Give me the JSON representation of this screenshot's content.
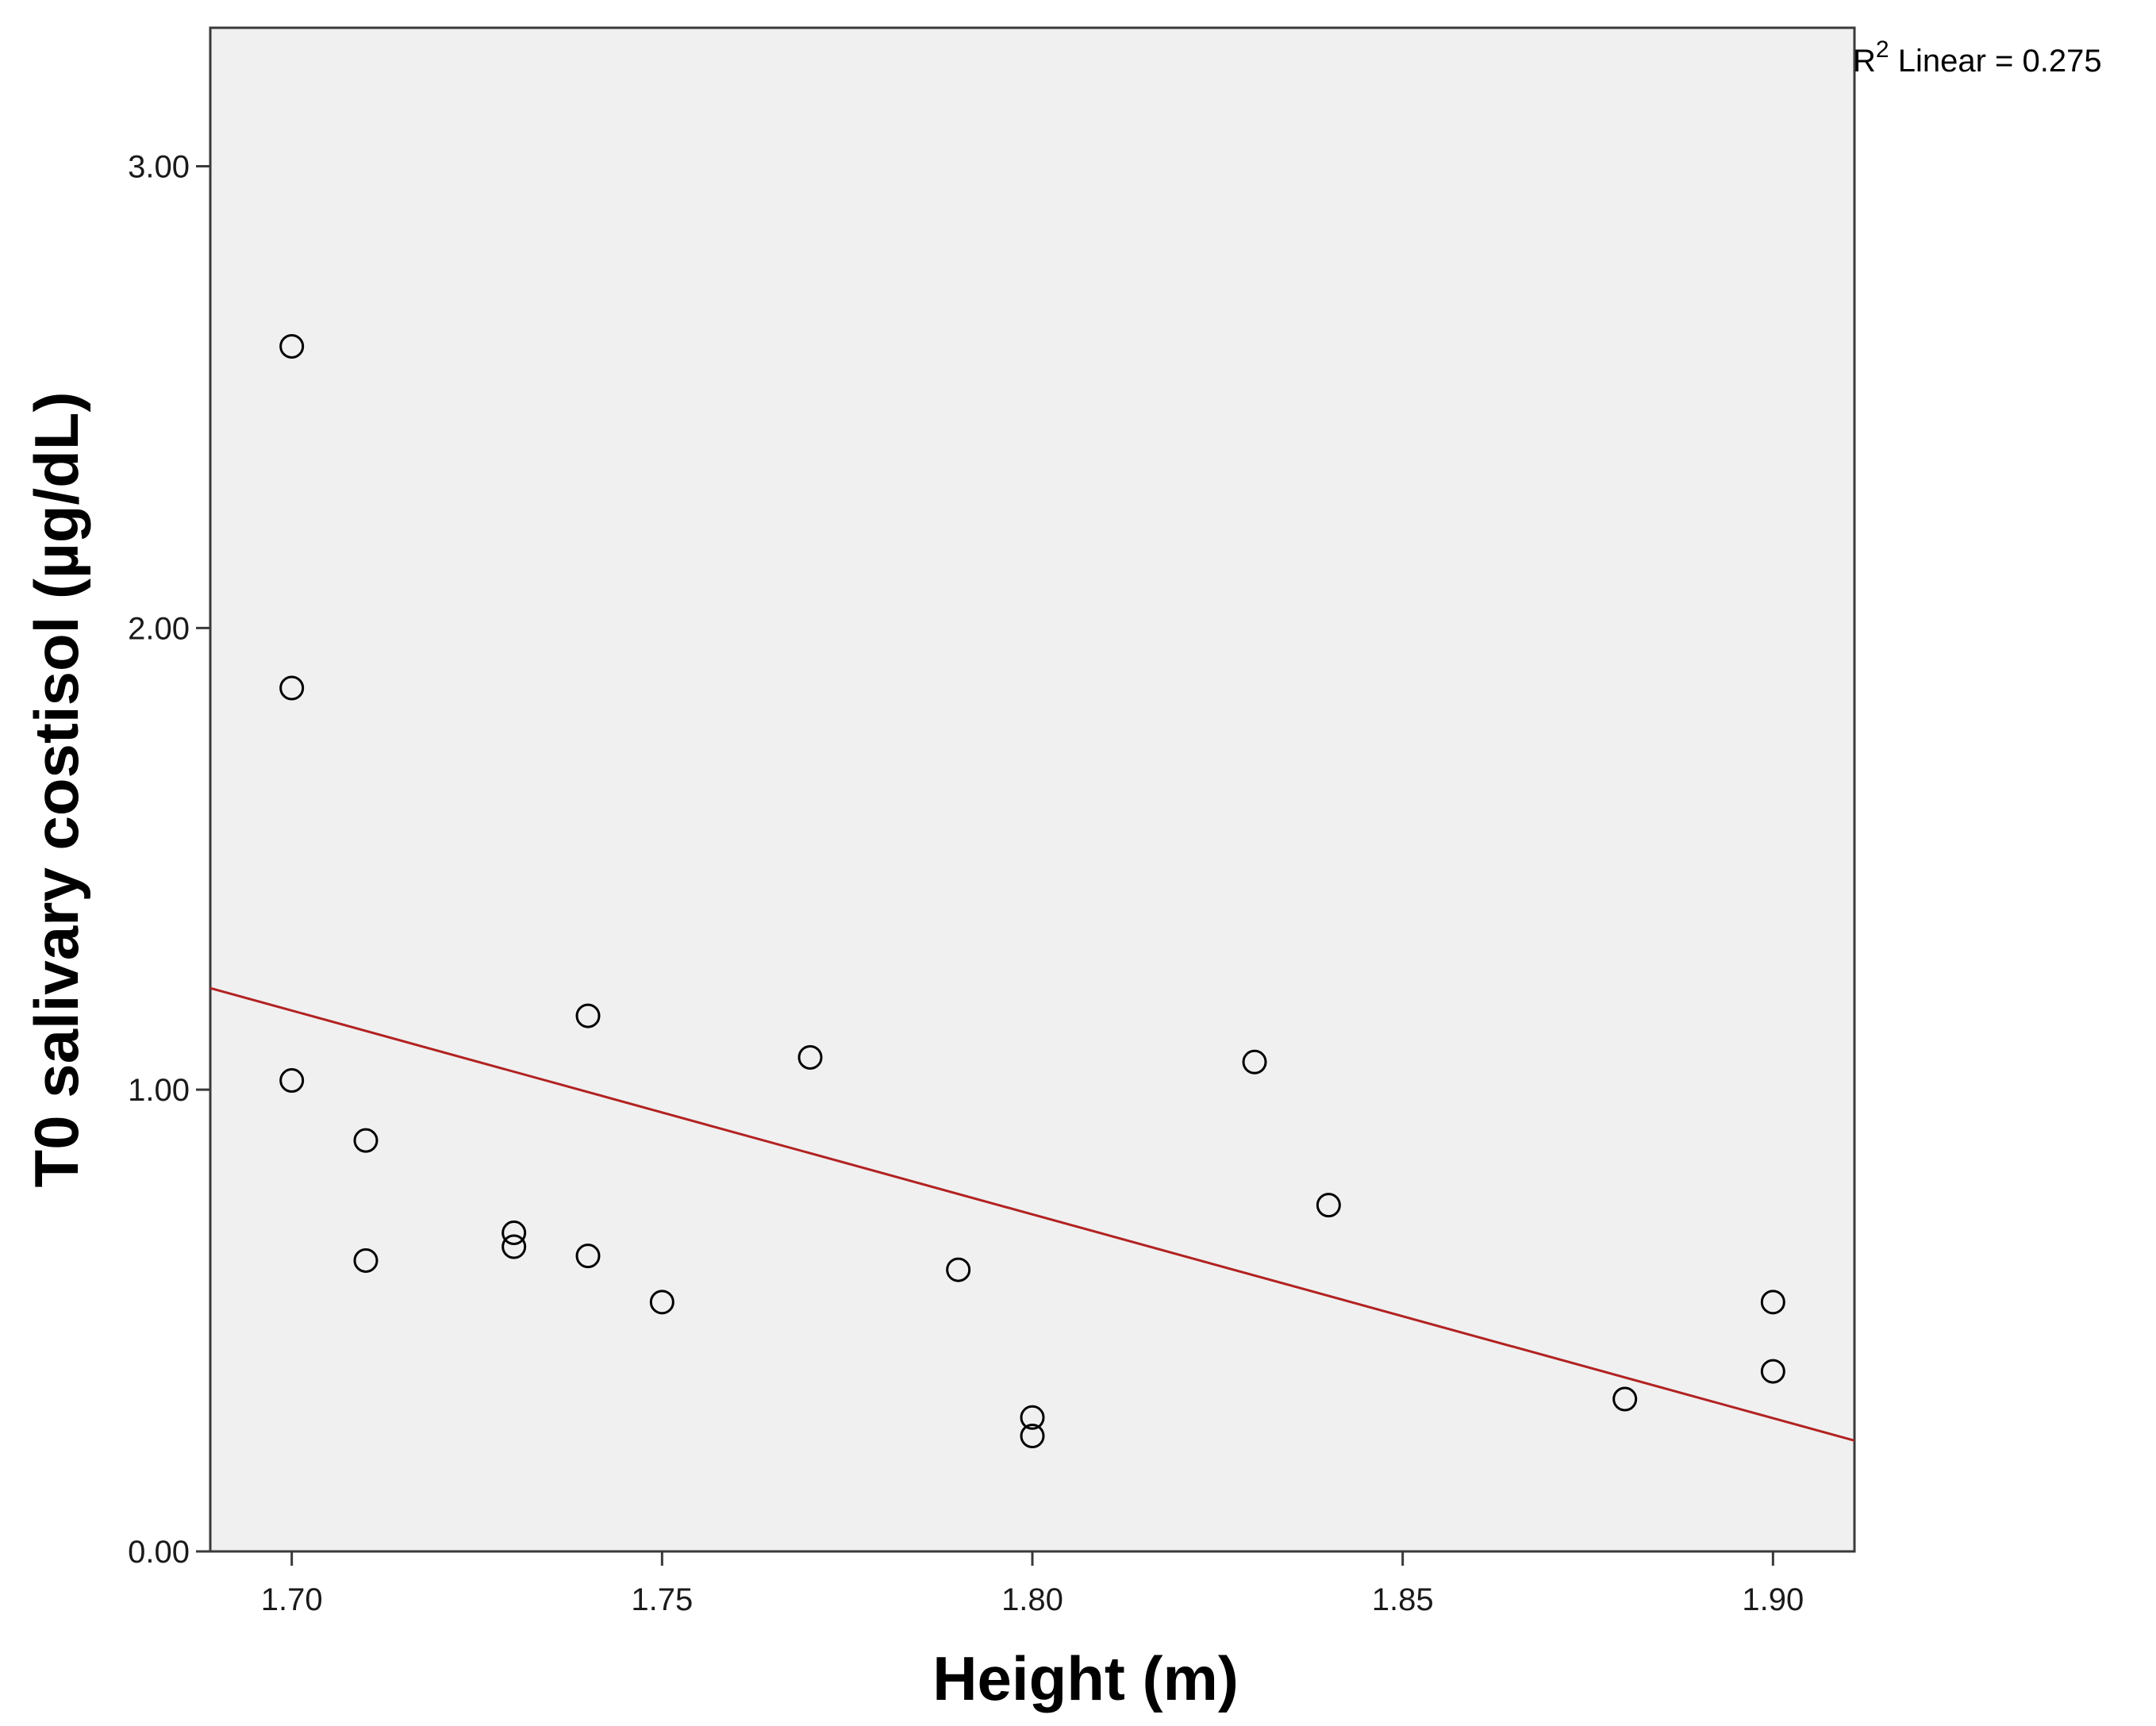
{
  "chart_data": {
    "type": "scatter",
    "title": "",
    "xlabel": "Height (m)",
    "ylabel": "T0 salivary costisol (µg/dL)",
    "xlim": [
      1.689,
      1.911
    ],
    "ylim": [
      0.0,
      3.3
    ],
    "x_ticks": [
      1.7,
      1.75,
      1.8,
      1.85,
      1.9
    ],
    "x_tick_labels": [
      "1.70",
      "1.75",
      "1.80",
      "1.85",
      "1.90"
    ],
    "y_ticks": [
      0.0,
      1.0,
      2.0,
      3.0
    ],
    "y_tick_labels": [
      "0.00",
      "1.00",
      "2.00",
      "3.00"
    ],
    "grid": false,
    "points": [
      {
        "x": 1.7,
        "y": 2.61
      },
      {
        "x": 1.7,
        "y": 1.87
      },
      {
        "x": 1.7,
        "y": 1.02
      },
      {
        "x": 1.71,
        "y": 0.89
      },
      {
        "x": 1.71,
        "y": 0.63
      },
      {
        "x": 1.73,
        "y": 0.69
      },
      {
        "x": 1.73,
        "y": 0.66
      },
      {
        "x": 1.74,
        "y": 1.16
      },
      {
        "x": 1.74,
        "y": 0.64
      },
      {
        "x": 1.75,
        "y": 0.54
      },
      {
        "x": 1.77,
        "y": 1.07
      },
      {
        "x": 1.79,
        "y": 0.61
      },
      {
        "x": 1.8,
        "y": 0.29
      },
      {
        "x": 1.8,
        "y": 0.25
      },
      {
        "x": 1.83,
        "y": 1.06
      },
      {
        "x": 1.84,
        "y": 0.75
      },
      {
        "x": 1.88,
        "y": 0.33
      },
      {
        "x": 1.9,
        "y": 0.54
      },
      {
        "x": 1.9,
        "y": 0.39
      }
    ],
    "fit_line": {
      "type": "linear",
      "x": [
        1.689,
        1.911
      ],
      "y": [
        1.22,
        0.24
      ],
      "color": "#b22222"
    },
    "annotation": {
      "base": "R",
      "sup": "2",
      "rest": " Linear = 0.275"
    },
    "colors": {
      "plot_background": "#f0f0f0",
      "marker_stroke": "#000000",
      "frame": "#3a3a3a"
    }
  }
}
